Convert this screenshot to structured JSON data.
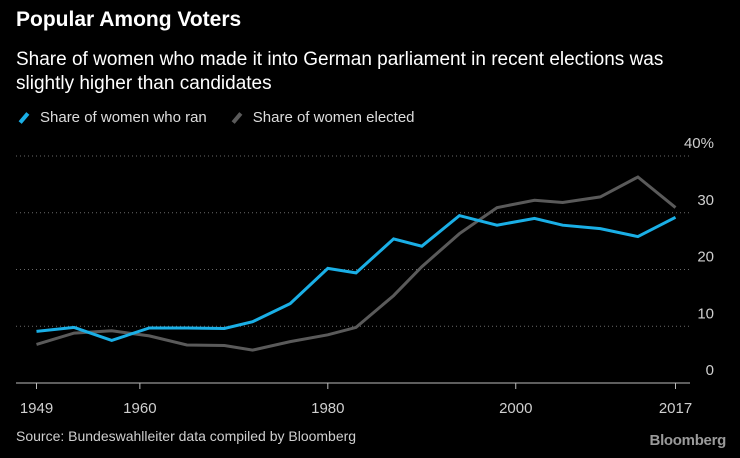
{
  "header": {
    "title": "Popular Among Voters",
    "subtitle": "Share of women who made it into German parliament in recent elections was slightly higher than candidates"
  },
  "footer": {
    "source": "Source: Bundeswahlleiter data compiled by Bloomberg",
    "brand": "Bloomberg"
  },
  "colors": {
    "background": "#000000",
    "ran": "#1aafe6",
    "elected": "#5a5a5a",
    "grid": "#6a6a6a",
    "text": "#cfcfcf"
  },
  "chart_data": {
    "type": "line",
    "title": "Popular Among Voters",
    "subtitle": "Share of women who made it into German parliament in recent elections was slightly higher than candidates",
    "xlabel": "",
    "ylabel": "",
    "x": [
      1949,
      1953,
      1957,
      1961,
      1965,
      1969,
      1972,
      1976,
      1980,
      1983,
      1987,
      1990,
      1994,
      1998,
      2002,
      2005,
      2009,
      2013,
      2017
    ],
    "series": [
      {
        "name": "Share of women who ran",
        "color": "#1aafe6",
        "values": [
          9.1,
          9.8,
          7.5,
          9.7,
          9.7,
          9.6,
          10.8,
          14,
          20.2,
          19.4,
          25.4,
          24.1,
          29.5,
          27.8,
          29,
          27.8,
          27.2,
          25.8,
          29.2
        ]
      },
      {
        "name": "Share of women elected",
        "color": "#5a5a5a",
        "values": [
          6.8,
          8.8,
          9.2,
          8.3,
          6.7,
          6.6,
          5.8,
          7.3,
          8.5,
          9.8,
          15.4,
          20.5,
          26.3,
          30.9,
          32.2,
          31.8,
          32.8,
          36.3,
          30.9
        ]
      }
    ],
    "ylim": [
      0,
      40
    ],
    "yticks": [
      0,
      10,
      20,
      30,
      40
    ],
    "ytick_labels": [
      "0",
      "10",
      "20",
      "30",
      "40%"
    ],
    "xticks": [
      1949,
      1960,
      1980,
      2000,
      2017
    ],
    "xtick_labels": [
      "1949",
      "1960",
      "1980",
      "2000",
      "2017"
    ],
    "grid": true,
    "legend_position": "top-left"
  }
}
